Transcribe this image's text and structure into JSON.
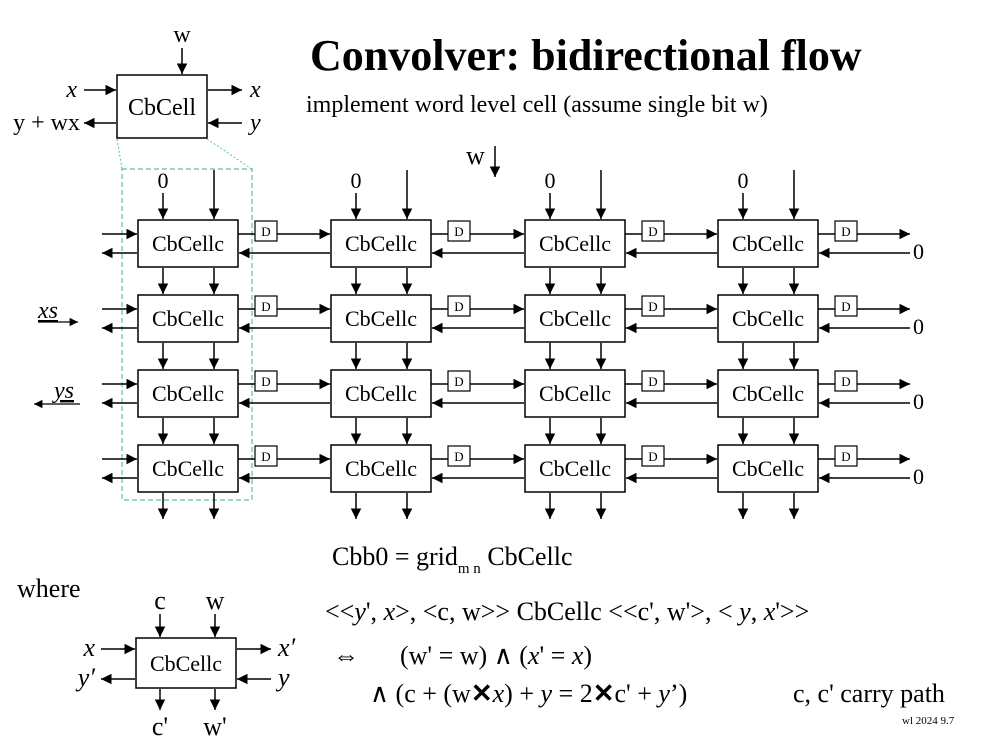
{
  "title": "Convolver: bidirectional flow",
  "subtitle": "implement word level cell (assume single bit w)",
  "top_cell": {
    "label": "CbCell",
    "w": "w",
    "x_in": "x",
    "x_out": "x",
    "y_in": "y",
    "y_out": "y + wx"
  },
  "grid": {
    "rows": 4,
    "cols": 4,
    "cell_label": "CbCellc",
    "delay_label": "D",
    "zero": "0",
    "w_label": "w",
    "xs_label": "xs",
    "ys_label": "ys"
  },
  "equation": {
    "lhs": "Cbb0  =  grid",
    "sub": "m n",
    "rhs": " CbCellc"
  },
  "where_label": "where",
  "bottom_cell": {
    "label": "CbCellc",
    "c": "c",
    "w": "w",
    "c_out": "c'",
    "w_out": "w'",
    "x_in": "x",
    "x_out": "x′",
    "y_in": "y",
    "y_out": "y′"
  },
  "formulas": {
    "line1_a": "<<",
    "line1_y": "y",
    "line1_b": "', ",
    "line1_x": "x",
    "line1_c": ">, <c, w>> CbCellc <<c', w'>, < ",
    "line1_y2": "y",
    "line1_d": ", ",
    "line1_x2": "x",
    "line1_e": "'>>",
    "line2_iff": "⇔",
    "line2_a": "(w' = w) ∧ (",
    "line2_x": "x",
    "line2_b": "' = ",
    "line2_x2": "x",
    "line2_c": ")",
    "line3_a": "∧ (c + (w",
    "line3_times": "✕",
    "line3_x": "x",
    "line3_b": ") + ",
    "line3_y": "y",
    "line3_c": " = 2",
    "line3_times2": "✕",
    "line3_d": "c' + ",
    "line3_y2": "y",
    "line3_e": "’)",
    "line3_note": "c, c' carry path"
  },
  "footer": "wl 2024  9.7"
}
